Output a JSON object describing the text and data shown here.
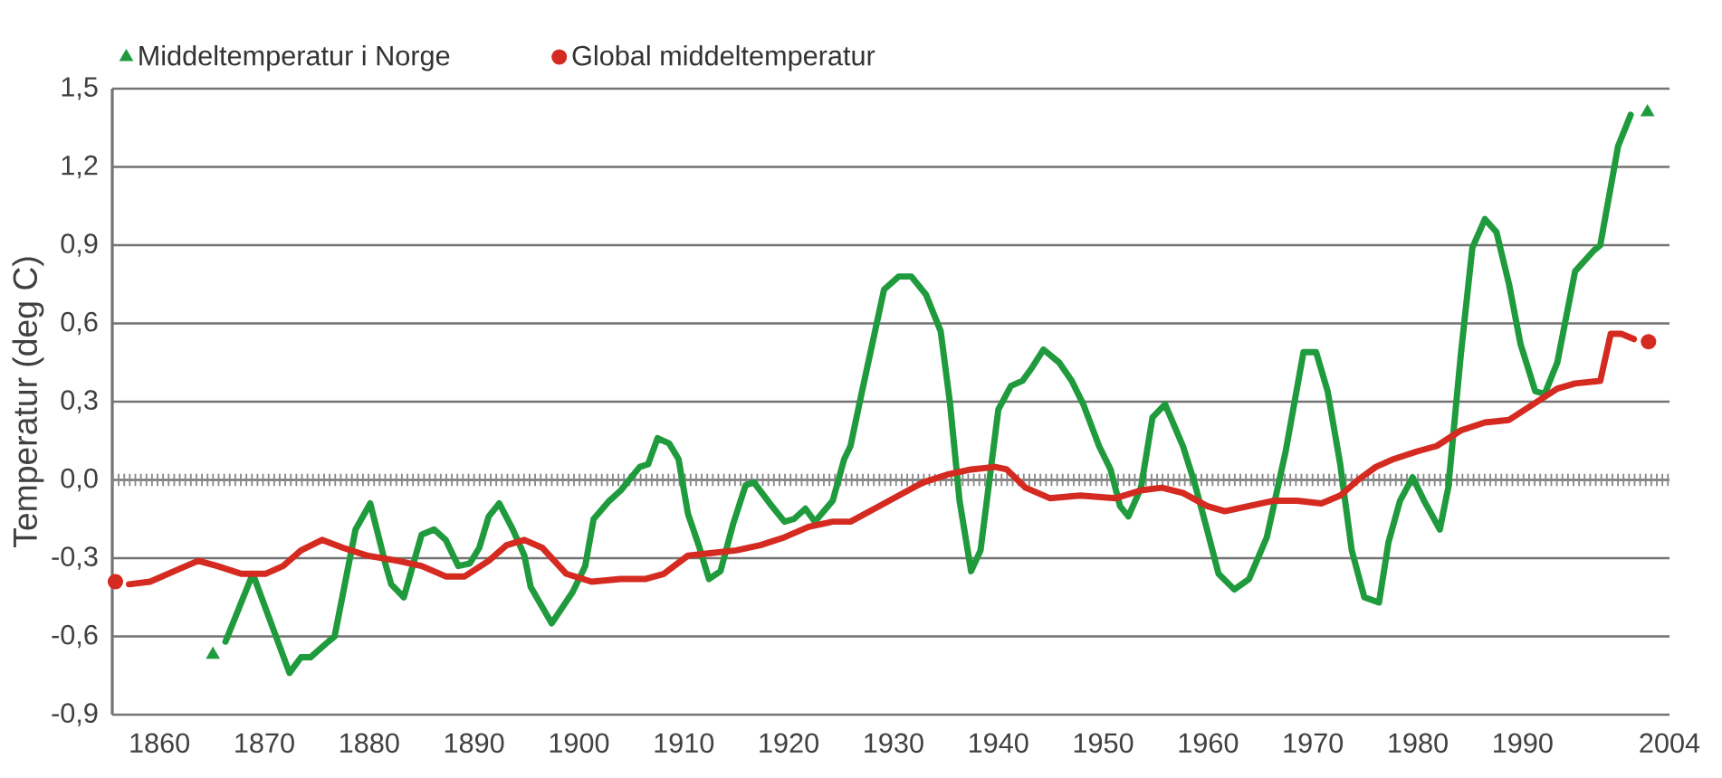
{
  "chart_data": {
    "type": "line",
    "ylabel": "Temperatur (deg C)",
    "xlim": [
      1855.5,
      2004
    ],
    "ylim": [
      -0.9,
      1.5
    ],
    "xticks": [
      1860,
      1870,
      1880,
      1890,
      1900,
      1910,
      1920,
      1930,
      1940,
      1950,
      1960,
      1970,
      1980,
      1990,
      2004
    ],
    "yticks": [
      {
        "value": -0.9,
        "label": "-0,9"
      },
      {
        "value": -0.6,
        "label": "-0,6"
      },
      {
        "value": -0.3,
        "label": "-0,3"
      },
      {
        "value": 0,
        "label": "0,0"
      },
      {
        "value": 0.3,
        "label": "0,3"
      },
      {
        "value": 0.6,
        "label": "0,6"
      },
      {
        "value": 0.9,
        "label": "0,9"
      },
      {
        "value": 1.2,
        "label": "1,2"
      },
      {
        "value": 1.5,
        "label": "1,5"
      }
    ],
    "grid": "y",
    "legend": "top left",
    "ref_lines": [
      {
        "axis": "y",
        "value": 0,
        "color": "#8a8a8a",
        "line_style": "dotted"
      }
    ],
    "series": [
      {
        "name": "Middeltemperatur i Norge",
        "type": "scatter",
        "marker": "triangle",
        "color": "#1f9a3c",
        "x": [
          1865.1,
          2001.9
        ],
        "values": [
          -0.67,
          1.41
        ]
      },
      {
        "name": "Global middeltemperatur",
        "type": "scatter",
        "marker": "circle",
        "color": "#d42a20",
        "x": [
          1855.8,
          2002.0
        ],
        "values": [
          -0.39,
          0.53
        ]
      },
      {
        "marker": "none",
        "color": "#1f9a3c",
        "x": [
          1866.3,
          1868.9,
          1872.4,
          1873.5,
          1874.4,
          1876.1,
          1876.7,
          1878.7,
          1880.1,
          1881.6,
          1882.1,
          1883.3,
          1885.0,
          1886.2,
          1887.3,
          1888.5,
          1889.6,
          1890.5,
          1891.4,
          1892.4,
          1893.7,
          1894.8,
          1895.4,
          1897.4,
          1899.4,
          1900.6,
          1901.4,
          1902.9,
          1904.0,
          1905.8,
          1906.6,
          1907.5,
          1908.6,
          1909.5,
          1910.4,
          1911.5,
          1912.4,
          1913.5,
          1914.7,
          1915.9,
          1916.7,
          1918.2,
          1919.6,
          1920.5,
          1921.6,
          1922.5,
          1924.2,
          1925.3,
          1925.9,
          1927.0,
          1929.1,
          1930.5,
          1931.7,
          1933.1,
          1934.5,
          1935.4,
          1936.3,
          1937.4,
          1938.3,
          1940.0,
          1941.2,
          1942.3,
          1943.2,
          1944.3,
          1945.8,
          1947.0,
          1948.1,
          1949.6,
          1950.7,
          1951.6,
          1952.4,
          1953.6,
          1954.7,
          1955.9,
          1957.6,
          1958.7,
          1959.9,
          1961.0,
          1962.5,
          1963.9,
          1965.6,
          1967.4,
          1969.1,
          1970.3,
          1971.4,
          1972.6,
          1973.7,
          1974.9,
          1976.3,
          1977.2,
          1978.3,
          1979.5,
          1980.6,
          1982.1,
          1982.9,
          1984.1,
          1985.2,
          1986.4,
          1987.5,
          1988.7,
          1989.8,
          1991.2,
          1992.1,
          1993.3,
          1995.0,
          1996.8,
          1997.4,
          1999.1,
          2000.3
        ],
        "values": [
          -0.62,
          -0.36,
          -0.74,
          -0.68,
          -0.68,
          -0.62,
          -0.6,
          -0.19,
          -0.09,
          -0.33,
          -0.4,
          -0.45,
          -0.21,
          -0.19,
          -0.23,
          -0.33,
          -0.32,
          -0.26,
          -0.14,
          -0.09,
          -0.19,
          -0.29,
          -0.41,
          -0.55,
          -0.43,
          -0.33,
          -0.15,
          -0.08,
          -0.04,
          0.05,
          0.06,
          0.16,
          0.14,
          0.08,
          -0.13,
          -0.26,
          -0.38,
          -0.35,
          -0.17,
          -0.02,
          -0.01,
          -0.09,
          -0.16,
          -0.15,
          -0.11,
          -0.16,
          -0.08,
          0.08,
          0.13,
          0.34,
          0.73,
          0.78,
          0.78,
          0.71,
          0.57,
          0.29,
          -0.08,
          -0.35,
          -0.27,
          0.27,
          0.36,
          0.38,
          0.43,
          0.5,
          0.45,
          0.38,
          0.29,
          0.13,
          0.04,
          -0.1,
          -0.14,
          -0.03,
          0.24,
          0.29,
          0.13,
          -0.01,
          -0.19,
          -0.36,
          -0.42,
          -0.38,
          -0.22,
          0.11,
          0.49,
          0.49,
          0.34,
          0.06,
          -0.27,
          -0.45,
          -0.47,
          -0.24,
          -0.08,
          0.01,
          -0.08,
          -0.19,
          -0.03,
          0.48,
          0.89,
          1.0,
          0.95,
          0.75,
          0.52,
          0.34,
          0.33,
          0.45,
          0.8,
          0.88,
          0.9,
          1.28,
          1.4
        ]
      },
      {
        "marker": "none",
        "color": "#d42a20",
        "x": [
          1857.1,
          1859.1,
          1861.4,
          1863.7,
          1865.5,
          1867.8,
          1870.1,
          1871.8,
          1873.5,
          1875.5,
          1877.5,
          1879.8,
          1882.7,
          1885.0,
          1887.3,
          1889.1,
          1891.4,
          1893.1,
          1894.8,
          1896.5,
          1898.8,
          1901.2,
          1904.0,
          1906.3,
          1908.1,
          1910.4,
          1912.7,
          1915.0,
          1917.3,
          1919.6,
          1921.9,
          1924.2,
          1925.9,
          1928.2,
          1930.5,
          1932.8,
          1935.1,
          1937.4,
          1939.7,
          1940.8,
          1942.6,
          1944.9,
          1947.8,
          1951.2,
          1953.6,
          1955.6,
          1957.6,
          1959.9,
          1961.6,
          1963.9,
          1966.2,
          1968.5,
          1970.8,
          1972.6,
          1974.3,
          1976.0,
          1977.7,
          1980.0,
          1981.8,
          1984.1,
          1986.4,
          1988.7,
          1991.0,
          1993.3,
          1995.0,
          1997.4,
          1998.4,
          1999.4,
          2000.6
        ],
        "values": [
          -0.4,
          -0.39,
          -0.35,
          -0.31,
          -0.33,
          -0.36,
          -0.36,
          -0.33,
          -0.27,
          -0.23,
          -0.26,
          -0.29,
          -0.31,
          -0.33,
          -0.37,
          -0.37,
          -0.31,
          -0.25,
          -0.23,
          -0.26,
          -0.36,
          -0.39,
          -0.38,
          -0.38,
          -0.36,
          -0.29,
          -0.28,
          -0.27,
          -0.25,
          -0.22,
          -0.18,
          -0.16,
          -0.16,
          -0.11,
          -0.06,
          -0.01,
          0.02,
          0.04,
          0.05,
          0.04,
          -0.03,
          -0.07,
          -0.06,
          -0.07,
          -0.04,
          -0.03,
          -0.05,
          -0.1,
          -0.12,
          -0.1,
          -0.08,
          -0.08,
          -0.09,
          -0.06,
          0.0,
          0.05,
          0.08,
          0.11,
          0.13,
          0.19,
          0.22,
          0.23,
          0.29,
          0.35,
          0.37,
          0.38,
          0.56,
          0.56,
          0.54
        ]
      }
    ]
  }
}
